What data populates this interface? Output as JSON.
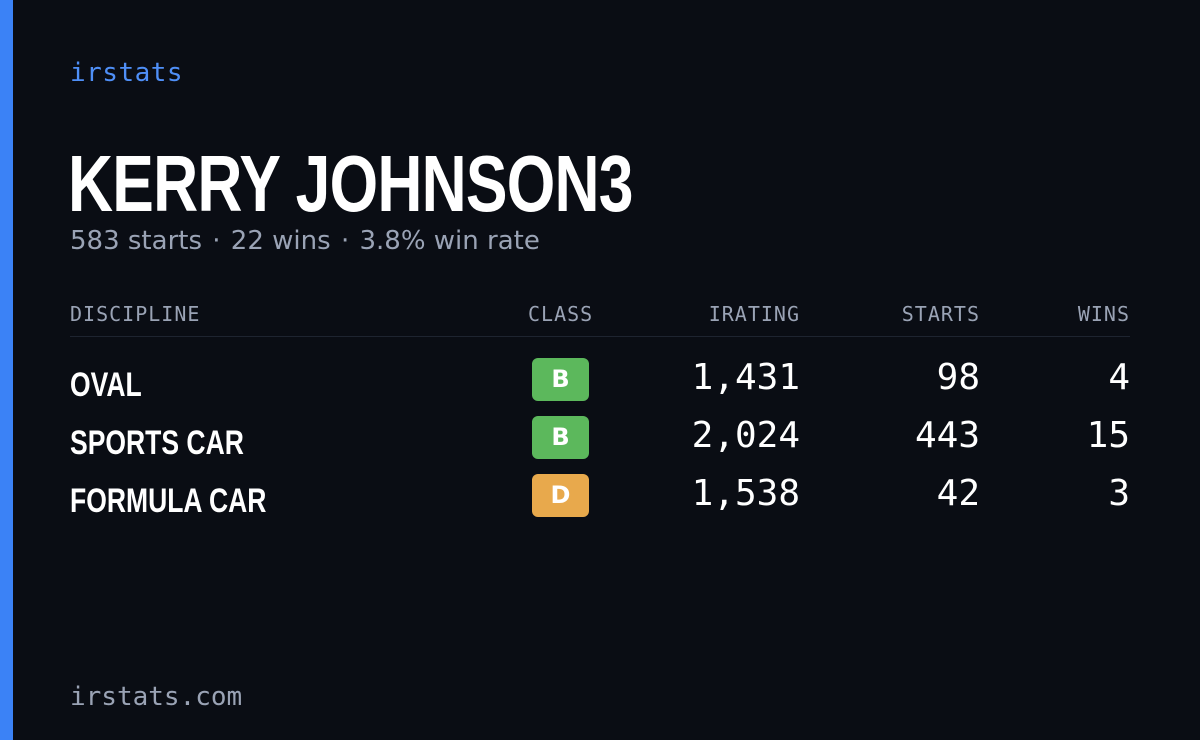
{
  "brand": "irstats",
  "driver": {
    "name": "KERRY JOHNSON3",
    "starts_text": "583 starts",
    "wins_text": "22 wins",
    "win_rate_text": "3.8% win rate",
    "separator": "·"
  },
  "table": {
    "headers": {
      "discipline": "DISCIPLINE",
      "class": "CLASS",
      "irating": "IRATING",
      "starts": "STARTS",
      "wins": "WINS"
    },
    "rows": [
      {
        "discipline": "OVAL",
        "class": "B",
        "class_color": "#5cb85c",
        "irating": "1,431",
        "starts": "98",
        "wins": "4"
      },
      {
        "discipline": "SPORTS CAR",
        "class": "B",
        "class_color": "#5cb85c",
        "irating": "2,024",
        "starts": "443",
        "wins": "15"
      },
      {
        "discipline": "FORMULA CAR",
        "class": "D",
        "class_color": "#e8a94c",
        "irating": "1,538",
        "starts": "42",
        "wins": "3"
      }
    ]
  },
  "footer": {
    "url": "irstats.com"
  },
  "colors": {
    "accent": "#3b82f6",
    "background": "#0a0d14",
    "muted_text": "#9aa3b5",
    "brand_text": "#4f8ff7"
  }
}
